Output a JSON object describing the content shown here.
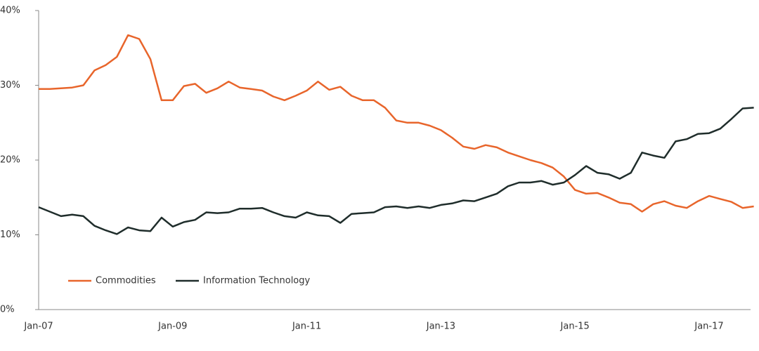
{
  "chart_data": {
    "type": "line",
    "categories": [
      "Jan-07",
      null,
      null,
      null,
      null,
      null,
      null,
      null,
      null,
      null,
      null,
      null,
      "Jan-09",
      null,
      null,
      null,
      null,
      null,
      null,
      null,
      null,
      null,
      null,
      null,
      "Jan-11",
      null,
      null,
      null,
      null,
      null,
      null,
      null,
      null,
      null,
      null,
      null,
      "Jan-13",
      null,
      null,
      null,
      null,
      null,
      null,
      null,
      null,
      null,
      null,
      null,
      "Jan-15",
      null,
      null,
      null,
      null,
      null,
      null,
      null,
      null,
      null,
      null,
      null,
      "Jan-17",
      null,
      null,
      null,
      null
    ],
    "series": [
      {
        "name": "Commodities",
        "color": "#e8652b",
        "values": [
          29.5,
          29.5,
          29.6,
          29.7,
          30.0,
          32.0,
          32.7,
          33.8,
          36.7,
          36.2,
          33.5,
          28.0,
          28.0,
          29.9,
          30.2,
          29.0,
          29.6,
          30.5,
          29.7,
          29.5,
          29.3,
          28.5,
          28.0,
          28.6,
          29.3,
          30.5,
          29.4,
          29.8,
          28.6,
          28.0,
          28.0,
          27.0,
          25.3,
          25.0,
          25.0,
          24.6,
          24.0,
          23.0,
          21.8,
          21.5,
          22.0,
          21.7,
          21.0,
          20.5,
          20.0,
          19.6,
          19.0,
          17.8,
          16.0,
          15.5,
          15.6,
          15.0,
          14.3,
          14.1,
          13.1,
          14.1,
          14.5,
          13.9,
          13.6,
          14.5,
          15.2,
          14.8,
          14.4,
          13.6,
          13.8
        ]
      },
      {
        "name": "Information Technology",
        "color": "#1f2d2b",
        "values": [
          13.7,
          13.1,
          12.5,
          12.7,
          12.5,
          11.2,
          10.6,
          10.1,
          11.0,
          10.6,
          10.5,
          12.3,
          11.1,
          11.7,
          12.0,
          13.0,
          12.9,
          13.0,
          13.5,
          13.5,
          13.6,
          13.0,
          12.5,
          12.3,
          13.0,
          12.6,
          12.5,
          11.6,
          12.8,
          12.9,
          13.0,
          13.7,
          13.8,
          13.6,
          13.8,
          13.6,
          14.0,
          14.2,
          14.6,
          14.5,
          15.0,
          15.5,
          16.5,
          17.0,
          17.0,
          17.2,
          16.7,
          17.0,
          18.0,
          19.2,
          18.3,
          18.1,
          17.5,
          18.3,
          21.0,
          20.6,
          20.3,
          22.5,
          22.8,
          23.5,
          23.6,
          24.2,
          25.5,
          26.9,
          27.0
        ]
      }
    ],
    "ylim": [
      0,
      40
    ],
    "yticks": [
      {
        "value": 0,
        "label": "0%"
      },
      {
        "value": 10,
        "label": "10%"
      },
      {
        "value": 20,
        "label": "20%"
      },
      {
        "value": 30,
        "label": "30%"
      },
      {
        "value": 40,
        "label": "40%"
      }
    ],
    "grid": false,
    "legend": "lower left"
  }
}
